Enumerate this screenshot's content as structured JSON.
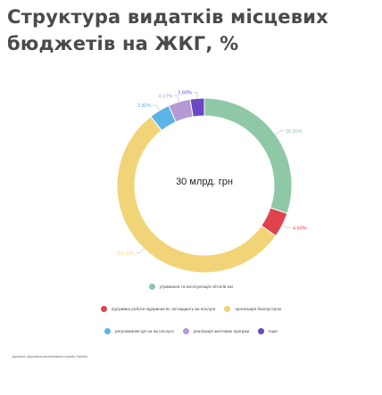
{
  "chart_data": {
    "type": "donut",
    "title": "Структура видатків місцевих бюджетів на ЖКГ, %",
    "center_label": "30 млрд. грн",
    "slices": [
      {
        "name": "утримання та експлуатація об'єктів жкг",
        "value": 30.2,
        "label": "30.20%",
        "color": "#8fc8a6"
      },
      {
        "name": "підтримка роботи підприємств, які надають жк послуги",
        "value": 4.6,
        "label": "4.60%",
        "color": "#e0424e"
      },
      {
        "name": "організація благоустрою",
        "value": 54.7,
        "label": "54.70%",
        "color": "#f2d478"
      },
      {
        "name": "регулювання цін на жк послуги",
        "value": 3.8,
        "label": "3.80%",
        "color": "#5ab5e6"
      },
      {
        "name": "реалізація житлових програм",
        "value": 4.1,
        "label": "4.10%",
        "color": "#b59ad6"
      },
      {
        "name": "інше",
        "value": 2.6,
        "label": "2.60%",
        "color": "#6a47c4"
      }
    ],
    "legend_placement": "bottom"
  },
  "source": "Джерело: Державна казначейська служба України"
}
